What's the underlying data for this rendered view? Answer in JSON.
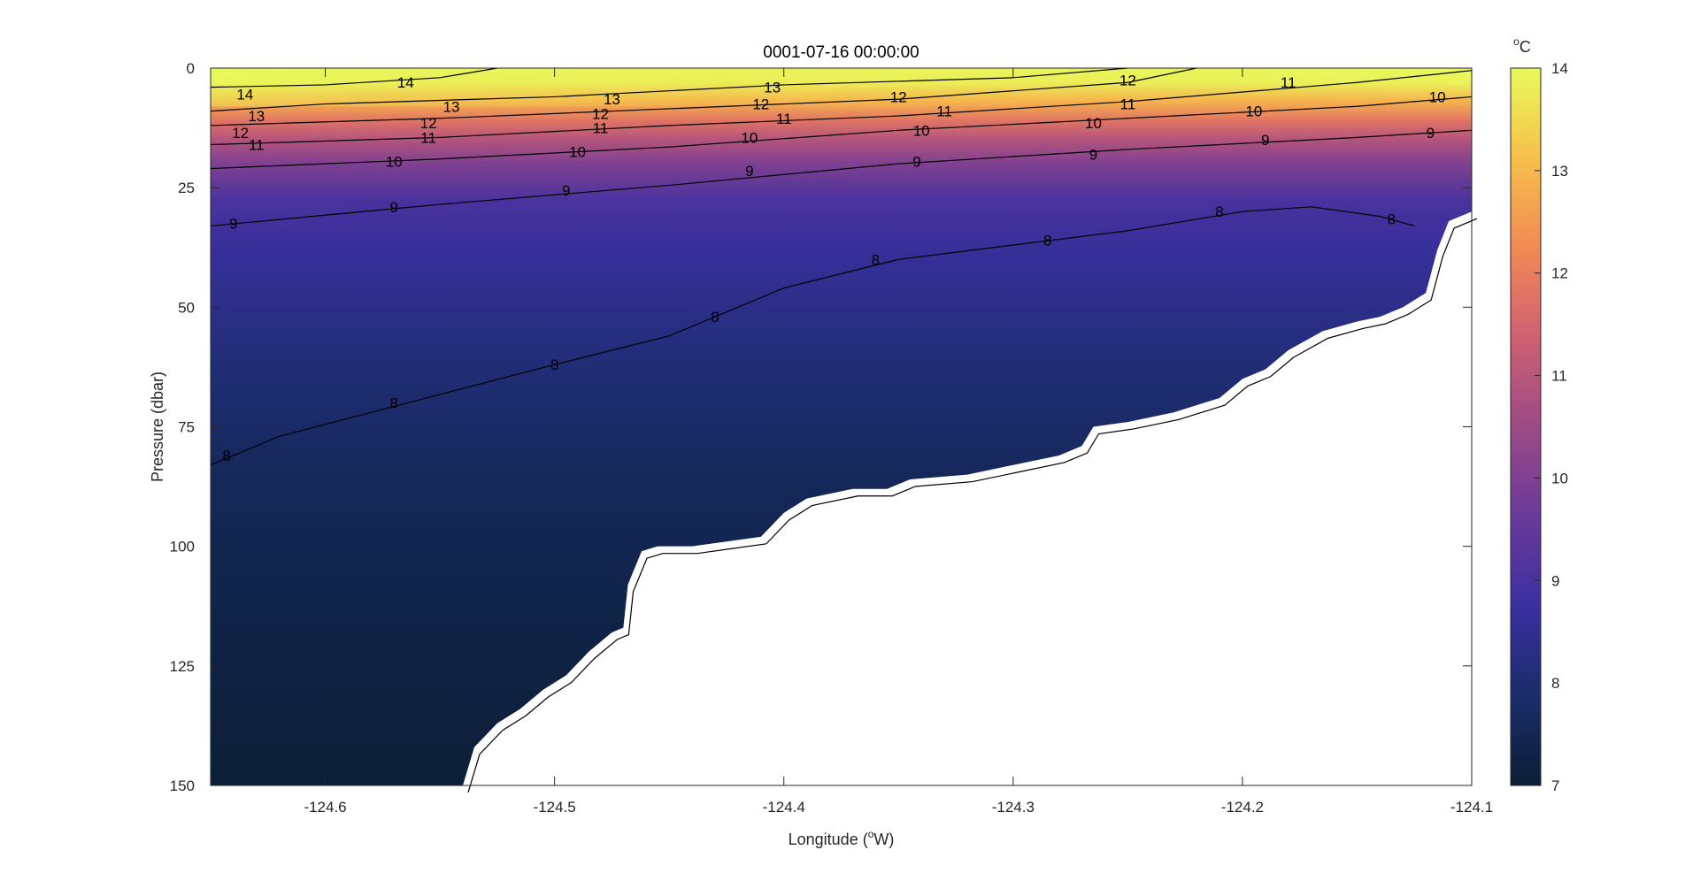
{
  "chart_data": {
    "type": "heatmap",
    "title": "0001-07-16 00:00:00",
    "xlabel": {
      "prefix": "Longitude (",
      "sup": "o",
      "suffix": "W)"
    },
    "ylabel": "Pressure (dbar)",
    "xlim": [
      -124.65,
      -124.1
    ],
    "ylim": [
      0,
      150
    ],
    "y_reversed": true,
    "x_ticks": [
      -124.6,
      -124.5,
      -124.4,
      -124.3,
      -124.2,
      -124.1
    ],
    "x_tick_labels": [
      "-124.6",
      "-124.5",
      "-124.4",
      "-124.3",
      "-124.2",
      "-124.1"
    ],
    "y_ticks": [
      0,
      25,
      50,
      75,
      100,
      125,
      150
    ],
    "y_tick_labels": [
      "0",
      "25",
      "50",
      "75",
      "100",
      "125",
      "150"
    ],
    "colorbar": {
      "unit": {
        "sup": "o",
        "suffix": "C"
      },
      "range": [
        7,
        14
      ],
      "ticks": [
        7,
        8,
        9,
        10,
        11,
        12,
        13,
        14
      ],
      "tick_labels": [
        "7",
        "8",
        "9",
        "10",
        "11",
        "12",
        "13",
        "14"
      ],
      "colormap_stops": [
        "#0b1e34",
        "#1a2d6b",
        "#3a2fa0",
        "#6a3a9a",
        "#9c4a86",
        "#cf6072",
        "#f28a55",
        "#f7c04a",
        "#e8fa5b"
      ]
    },
    "bottom_depth": [
      [
        -124.65,
        150
      ],
      [
        -124.54,
        150
      ],
      [
        -124.535,
        142
      ],
      [
        -124.525,
        137
      ],
      [
        -124.515,
        134
      ],
      [
        -124.505,
        130
      ],
      [
        -124.495,
        127
      ],
      [
        -124.485,
        122
      ],
      [
        -124.475,
        118
      ],
      [
        -124.47,
        117
      ],
      [
        -124.468,
        108
      ],
      [
        -124.462,
        101
      ],
      [
        -124.455,
        100
      ],
      [
        -124.44,
        100
      ],
      [
        -124.425,
        99
      ],
      [
        -124.41,
        98
      ],
      [
        -124.4,
        93
      ],
      [
        -124.39,
        90
      ],
      [
        -124.37,
        88
      ],
      [
        -124.355,
        88
      ],
      [
        -124.345,
        86
      ],
      [
        -124.32,
        85
      ],
      [
        -124.3,
        83
      ],
      [
        -124.28,
        81
      ],
      [
        -124.27,
        79
      ],
      [
        -124.265,
        75
      ],
      [
        -124.25,
        74
      ],
      [
        -124.23,
        72
      ],
      [
        -124.21,
        69
      ],
      [
        -124.2,
        65
      ],
      [
        -124.19,
        63
      ],
      [
        -124.18,
        59
      ],
      [
        -124.165,
        55
      ],
      [
        -124.15,
        53
      ],
      [
        -124.14,
        52
      ],
      [
        -124.13,
        50
      ],
      [
        -124.12,
        47
      ],
      [
        -124.115,
        38
      ],
      [
        -124.11,
        32
      ],
      [
        -124.1,
        30
      ]
    ],
    "surface_temperature": [
      [
        -124.65,
        14.4
      ],
      [
        -124.55,
        14.2
      ],
      [
        -124.45,
        13.6
      ],
      [
        -124.35,
        13.3
      ],
      [
        -124.25,
        12.9
      ],
      [
        -124.15,
        12.4
      ],
      [
        -124.1,
        12.2
      ]
    ],
    "contours": [
      {
        "level": 14,
        "points": [
          [
            -124.65,
            4
          ],
          [
            -124.6,
            3.5
          ],
          [
            -124.55,
            2
          ],
          [
            -124.525,
            0
          ]
        ],
        "labels": [
          [
            -124.635,
            5.5
          ],
          [
            -124.565,
            3
          ]
        ]
      },
      {
        "level": 13,
        "points": [
          [
            -124.65,
            9
          ],
          [
            -124.6,
            7.5
          ],
          [
            -124.5,
            6
          ],
          [
            -124.4,
            3.5
          ],
          [
            -124.3,
            2
          ],
          [
            -124.25,
            0
          ]
        ],
        "labels": [
          [
            -124.63,
            10
          ],
          [
            -124.545,
            8
          ],
          [
            -124.475,
            6.5
          ],
          [
            -124.405,
            4
          ]
        ]
      },
      {
        "level": 12,
        "points": [
          [
            -124.65,
            12
          ],
          [
            -124.55,
            10.5
          ],
          [
            -124.45,
            8.5
          ],
          [
            -124.35,
            6.5
          ],
          [
            -124.25,
            3
          ],
          [
            -124.22,
            0
          ]
        ],
        "labels": [
          [
            -124.637,
            13.5
          ],
          [
            -124.555,
            11.5
          ],
          [
            -124.48,
            9.5
          ],
          [
            -124.41,
            7.5
          ],
          [
            -124.35,
            6
          ],
          [
            -124.25,
            2.5
          ]
        ]
      },
      {
        "level": 11,
        "points": [
          [
            -124.65,
            16
          ],
          [
            -124.55,
            14.5
          ],
          [
            -124.45,
            12
          ],
          [
            -124.35,
            10
          ],
          [
            -124.25,
            7
          ],
          [
            -124.15,
            3
          ],
          [
            -124.1,
            0.5
          ]
        ],
        "labels": [
          [
            -124.63,
            16
          ],
          [
            -124.555,
            14.5
          ],
          [
            -124.48,
            12.5
          ],
          [
            -124.4,
            10.5
          ],
          [
            -124.33,
            9
          ],
          [
            -124.25,
            7.5
          ],
          [
            -124.18,
            3
          ]
        ]
      },
      {
        "level": 10,
        "points": [
          [
            -124.65,
            21
          ],
          [
            -124.55,
            19
          ],
          [
            -124.45,
            16.5
          ],
          [
            -124.35,
            13
          ],
          [
            -124.25,
            10.5
          ],
          [
            -124.15,
            8
          ],
          [
            -124.1,
            6
          ]
        ],
        "labels": [
          [
            -124.57,
            19.5
          ],
          [
            -124.49,
            17.5
          ],
          [
            -124.415,
            14.5
          ],
          [
            -124.34,
            13
          ],
          [
            -124.265,
            11.5
          ],
          [
            -124.195,
            9
          ],
          [
            -124.115,
            6
          ]
        ]
      },
      {
        "level": 9,
        "points": [
          [
            -124.65,
            33
          ],
          [
            -124.55,
            28.5
          ],
          [
            -124.45,
            24.5
          ],
          [
            -124.35,
            20
          ],
          [
            -124.25,
            17
          ],
          [
            -124.15,
            14.5
          ],
          [
            -124.1,
            13
          ]
        ],
        "labels": [
          [
            -124.64,
            32.5
          ],
          [
            -124.57,
            29
          ],
          [
            -124.495,
            25.5
          ],
          [
            -124.415,
            21.5
          ],
          [
            -124.342,
            19.5
          ],
          [
            -124.265,
            18
          ],
          [
            -124.19,
            15
          ],
          [
            -124.118,
            13.5
          ]
        ]
      },
      {
        "level": 8,
        "points": [
          [
            -124.65,
            83
          ],
          [
            -124.62,
            77
          ],
          [
            -124.58,
            72
          ],
          [
            -124.5,
            62
          ],
          [
            -124.45,
            56
          ],
          [
            -124.4,
            46
          ],
          [
            -124.35,
            40
          ],
          [
            -124.3,
            37
          ],
          [
            -124.25,
            34
          ],
          [
            -124.2,
            30
          ],
          [
            -124.17,
            29
          ],
          [
            -124.14,
            31
          ],
          [
            -124.125,
            33
          ]
        ],
        "labels": [
          [
            -124.643,
            81
          ],
          [
            -124.57,
            70
          ],
          [
            -124.5,
            62
          ],
          [
            -124.43,
            52
          ],
          [
            -124.36,
            40
          ],
          [
            -124.285,
            36
          ],
          [
            -124.21,
            30
          ],
          [
            -124.135,
            31.5
          ]
        ]
      }
    ]
  }
}
